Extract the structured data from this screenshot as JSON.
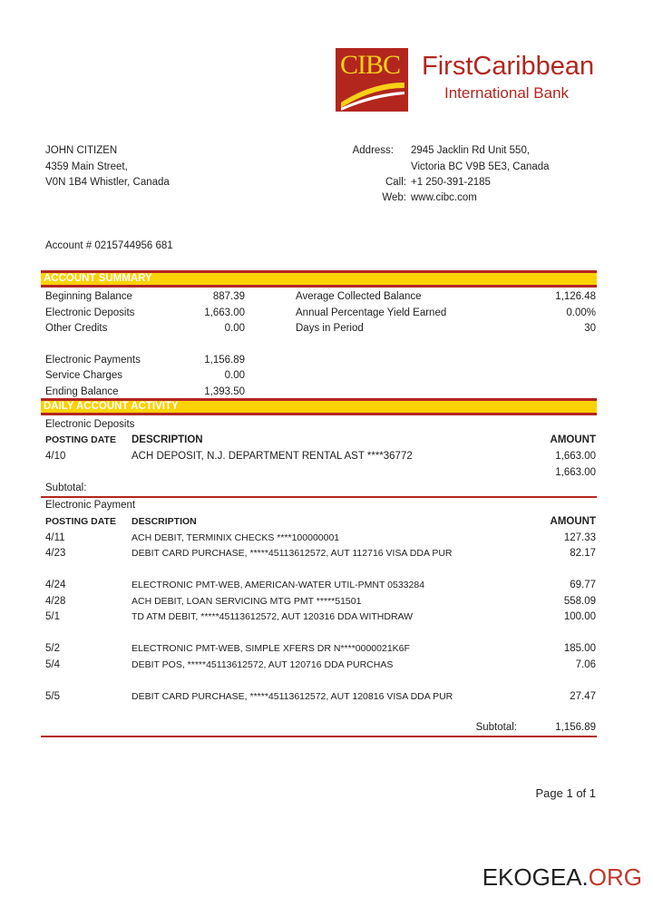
{
  "bank": {
    "logo_text": "CIBC",
    "name_line1": "FirstCaribbean",
    "name_line2": "International Bank",
    "brand_red": "#b3261e",
    "brand_yellow": "#fcd200"
  },
  "customer": {
    "name": "JOHN CITIZEN",
    "street": "4359 Main Street,",
    "city": "V0N 1B4 Whistler, Canada",
    "account": "Account # 0215744956 681"
  },
  "contact": {
    "address_label": "Address:",
    "address1": "2945 Jacklin Rd Unit 550,",
    "address2": "Victoria BC V9B 5E3, Canada",
    "call_label": "Call:",
    "call": "+1 250-391-2185",
    "web_label": "Web:",
    "web": "www.cibc.com"
  },
  "summary": {
    "title": "ACCOUNT SUMMARY",
    "left": [
      {
        "label": "Beginning Balance",
        "value": "887.39"
      },
      {
        "label": "Electronic Deposits",
        "value": "1,663.00"
      },
      {
        "label": "Other Credits",
        "value": "0.00"
      },
      {
        "label": "Electronic Payments",
        "value": "1,156.89"
      },
      {
        "label": "Service Charges",
        "value": "0.00"
      },
      {
        "label": "Ending Balance",
        "value": "1,393.50"
      }
    ],
    "right": [
      {
        "label": "Average Collected Balance",
        "value": "1,126.48"
      },
      {
        "label": "Annual Percentage Yield Earned",
        "value": "0.00%"
      },
      {
        "label": "Days in Period",
        "value": "30"
      }
    ]
  },
  "activity": {
    "title": "DAILY ACCOUNT ACTIVITY",
    "headers": {
      "date": "POSTING DATE",
      "description": "DESCRIPTION",
      "amount": "AMOUNT"
    },
    "deposits": {
      "title": "Electronic Deposits",
      "rows": [
        {
          "date": "4/10",
          "description": "ACH DEPOSIT, N.J. DEPARTMENT RENTAL AST ****36772",
          "amount": "1,663.00"
        }
      ],
      "total": "1,663.00",
      "subtotal_label": "Subtotal:"
    },
    "payments": {
      "title": "Electronic Payment",
      "rows": [
        {
          "date": "4/11",
          "description": "ACH DEBIT, TERMINIX CHECKS ****100000001",
          "amount": "127.33"
        },
        {
          "date": "4/23",
          "description": "DEBIT CARD PURCHASE, *****45113612572, AUT 112716 VISA DDA PUR",
          "amount": "82.17"
        },
        {
          "date": "4/24",
          "description": "ELECTRONIC PMT-WEB, AMERICAN-WATER UTIL-PMNT 0533284",
          "amount": "69.77"
        },
        {
          "date": "4/28",
          "description": "ACH DEBIT, LOAN SERVICING MTG PMT *****51501",
          "amount": "558.09"
        },
        {
          "date": "5/1",
          "description": "TD ATM DEBIT, *****45113612572, AUT 120316 DDA WITHDRAW",
          "amount": "100.00"
        },
        {
          "date": "5/2",
          "description": "ELECTRONIC PMT-WEB, SIMPLE XFERS DR N****0000021K6F",
          "amount": "185.00"
        },
        {
          "date": "5/4",
          "description": "DEBIT POS, *****45113612572, AUT 120716 DDA PURCHAS",
          "amount": "7.06"
        },
        {
          "date": "5/5",
          "description": "DEBIT CARD PURCHASE, *****45113612572, AUT 120816 VISA DDA PUR",
          "amount": "27.47"
        }
      ],
      "subtotal_label": "Subtotal:",
      "subtotal": "1,156.89"
    }
  },
  "footer": {
    "page": "Page 1 of 1",
    "watermark_a": "EKOGEA.",
    "watermark_b": "ORG"
  }
}
